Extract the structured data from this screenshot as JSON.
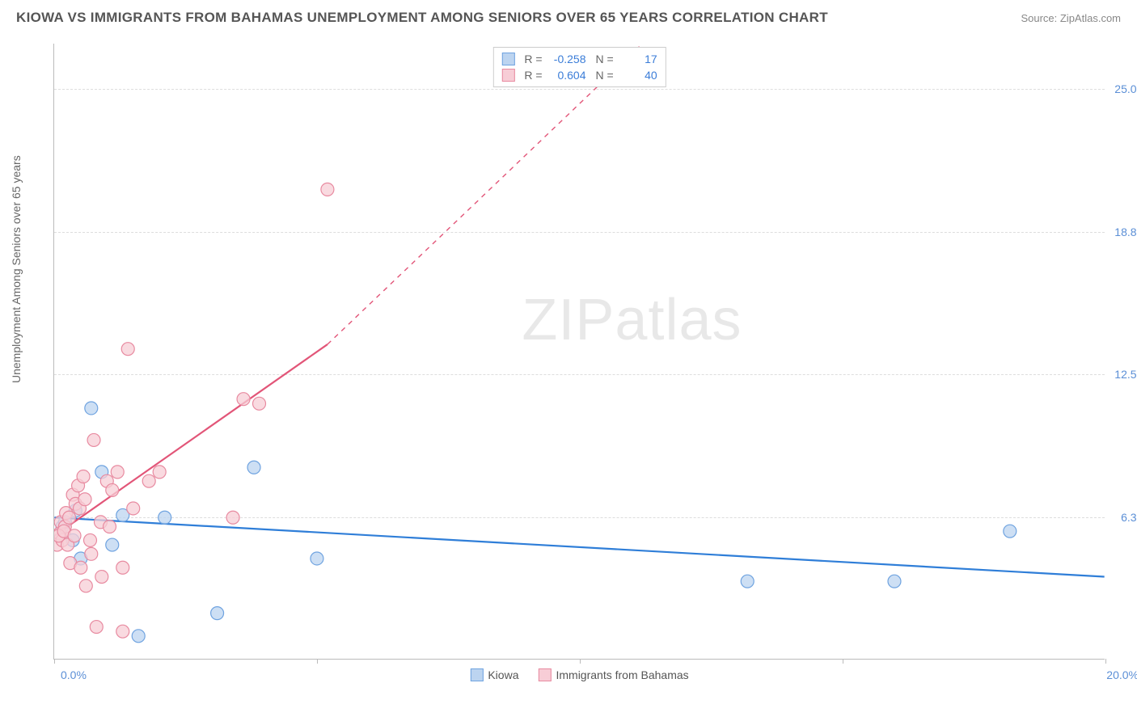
{
  "header": {
    "title": "KIOWA VS IMMIGRANTS FROM BAHAMAS UNEMPLOYMENT AMONG SENIORS OVER 65 YEARS CORRELATION CHART",
    "source": "Source: ZipAtlas.com"
  },
  "watermark": {
    "part1": "ZIP",
    "part2": "atlas"
  },
  "chart": {
    "type": "scatter",
    "y_axis_label": "Unemployment Among Seniors over 65 years",
    "x_range": [
      0,
      20
    ],
    "y_range": [
      0,
      27
    ],
    "x_ticks": [
      0,
      5,
      10,
      15,
      20
    ],
    "y_gridlines": [
      6.25,
      12.5,
      18.75,
      25.0
    ],
    "y_tick_labels": [
      "6.3%",
      "12.5%",
      "18.8%",
      "25.0%"
    ],
    "x_min_label": "0.0%",
    "x_max_label": "20.0%",
    "background_color": "#ffffff",
    "grid_color": "#dddddd",
    "axis_color": "#bbbbbb",
    "tick_label_color": "#5b8fd6",
    "marker_radius": 8,
    "marker_stroke_width": 1.2,
    "series": [
      {
        "name": "Kiowa",
        "stats": {
          "R": "-0.258",
          "N": "17"
        },
        "fill_color": "#bcd4f0",
        "stroke_color": "#6fa3e0",
        "line_color": "#2f7ed8",
        "trend": {
          "x1": 0,
          "y1": 6.2,
          "x2": 20,
          "y2": 3.6,
          "dash_after_x": 20
        },
        "points": [
          [
            0.15,
            5.8
          ],
          [
            0.35,
            5.2
          ],
          [
            0.5,
            4.4
          ],
          [
            0.7,
            11.0
          ],
          [
            0.9,
            8.2
          ],
          [
            1.1,
            5.0
          ],
          [
            1.3,
            6.3
          ],
          [
            1.6,
            1.0
          ],
          [
            2.1,
            6.2
          ],
          [
            3.1,
            2.0
          ],
          [
            3.8,
            8.4
          ],
          [
            5.0,
            4.4
          ],
          [
            13.2,
            3.4
          ],
          [
            16.0,
            3.4
          ],
          [
            18.2,
            5.6
          ],
          [
            0.2,
            6.0
          ],
          [
            0.4,
            6.5
          ]
        ]
      },
      {
        "name": "Immigrants from Bahamas",
        "stats": {
          "R": "0.604",
          "N": "40"
        },
        "fill_color": "#f7cdd6",
        "stroke_color": "#e88aa0",
        "line_color": "#e25578",
        "trend": {
          "x1": 0,
          "y1": 5.4,
          "x2": 5.2,
          "y2": 13.8,
          "dash_to_x": 11.2,
          "dash_to_y": 27
        },
        "points": [
          [
            0.05,
            5.0
          ],
          [
            0.1,
            5.5
          ],
          [
            0.12,
            6.0
          ],
          [
            0.15,
            5.2
          ],
          [
            0.2,
            5.8
          ],
          [
            0.22,
            6.4
          ],
          [
            0.25,
            5.0
          ],
          [
            0.3,
            4.2
          ],
          [
            0.35,
            7.2
          ],
          [
            0.4,
            6.8
          ],
          [
            0.45,
            7.6
          ],
          [
            0.5,
            4.0
          ],
          [
            0.55,
            8.0
          ],
          [
            0.6,
            3.2
          ],
          [
            0.7,
            4.6
          ],
          [
            0.75,
            9.6
          ],
          [
            0.8,
            1.4
          ],
          [
            0.9,
            3.6
          ],
          [
            1.0,
            7.8
          ],
          [
            1.1,
            7.4
          ],
          [
            1.2,
            8.2
          ],
          [
            1.3,
            4.0
          ],
          [
            1.4,
            13.6
          ],
          [
            1.5,
            6.6
          ],
          [
            1.3,
            1.2
          ],
          [
            1.8,
            7.8
          ],
          [
            2.0,
            8.2
          ],
          [
            3.4,
            6.2
          ],
          [
            3.6,
            11.4
          ],
          [
            3.9,
            11.2
          ],
          [
            5.2,
            20.6
          ],
          [
            0.08,
            5.4
          ],
          [
            0.18,
            5.6
          ],
          [
            0.28,
            6.2
          ],
          [
            0.38,
            5.4
          ],
          [
            0.48,
            6.6
          ],
          [
            0.58,
            7.0
          ],
          [
            0.68,
            5.2
          ],
          [
            0.88,
            6.0
          ],
          [
            1.05,
            5.8
          ]
        ]
      }
    ],
    "legend_bottom": [
      {
        "label": "Kiowa",
        "fill": "#bcd4f0",
        "stroke": "#6fa3e0"
      },
      {
        "label": "Immigrants from Bahamas",
        "fill": "#f7cdd6",
        "stroke": "#e88aa0"
      }
    ],
    "legend_top_labels": {
      "R": "R =",
      "N": "N ="
    }
  }
}
